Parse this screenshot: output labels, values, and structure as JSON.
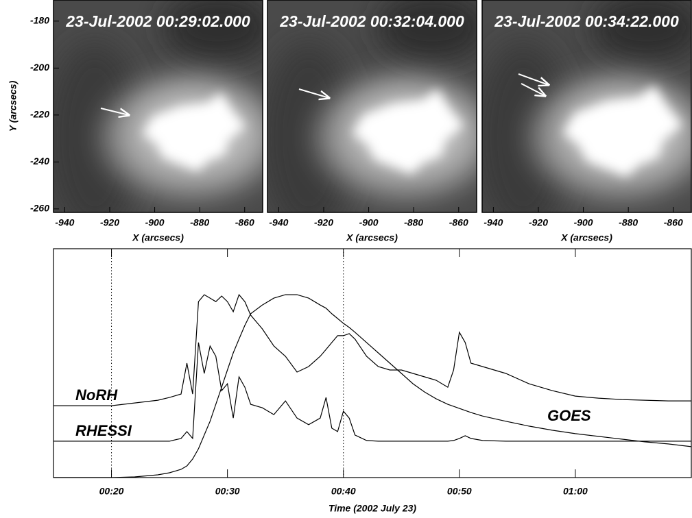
{
  "chart_data": [
    {
      "type": "image",
      "title": "23-Jul-2002 00:29:02.000",
      "xlabel": "X (arcsecs)",
      "ylabel": "Y (arcsecs)",
      "xlim": [
        -945,
        -852
      ],
      "ylim": [
        -261.5,
        -171
      ],
      "xticks": [
        -940,
        -920,
        -900,
        -880,
        -860
      ],
      "yticks": [
        -180,
        -200,
        -220,
        -240,
        -260
      ]
    },
    {
      "type": "image",
      "title": "23-Jul-2002 00:32:04.000",
      "xlabel": "X (arcsecs)",
      "xlim": [
        -945,
        -852
      ],
      "ylim": [
        -261.5,
        -171
      ],
      "xticks": [
        -940,
        -920,
        -900,
        -880,
        -860
      ]
    },
    {
      "type": "image",
      "title": "23-Jul-2002 00:34:22.000",
      "xlabel": "X (arcsecs)",
      "xlim": [
        -945,
        -852
      ],
      "ylim": [
        -261.5,
        -171
      ],
      "xticks": [
        -940,
        -920,
        -900,
        -880,
        -860
      ]
    },
    {
      "type": "line",
      "xlabel": "Time (2002 July 23)",
      "xlim": [
        15,
        70
      ],
      "ylim": [
        0,
        100
      ],
      "xticks": [
        {
          "value": 20,
          "label": "00:20"
        },
        {
          "value": 30,
          "label": "00:30"
        },
        {
          "value": 40,
          "label": "00:40"
        },
        {
          "value": 50,
          "label": "00:50"
        },
        {
          "value": 60,
          "label": "01:00"
        }
      ],
      "vlines": [
        20,
        40
      ],
      "x": [
        15,
        20,
        22,
        24,
        25,
        26,
        26.5,
        27,
        27.5,
        28,
        28.5,
        29,
        29.5,
        30,
        30.5,
        31,
        31.5,
        32,
        33,
        34,
        35,
        36,
        37,
        38,
        38.5,
        39,
        39.5,
        40,
        40.5,
        41,
        42,
        43,
        44,
        45,
        46,
        47,
        48,
        49,
        49.5,
        50,
        50.5,
        51,
        52,
        54,
        56,
        58,
        60,
        62,
        64,
        66,
        68,
        70
      ],
      "series": [
        {
          "name": "NoRH",
          "color": "#000000",
          "values": [
            31.4,
            31.4,
            32.6,
            33.8,
            35.0,
            36.5,
            50.0,
            36.5,
            76.9,
            79.9,
            78.4,
            76.9,
            79.3,
            76.9,
            72.5,
            79.9,
            76.9,
            71.0,
            65.0,
            57.5,
            53.0,
            46.1,
            48.5,
            53.0,
            56.0,
            59.0,
            62.0,
            62.0,
            62.9,
            60.5,
            53.0,
            48.5,
            47.0,
            47.0,
            45.5,
            44.0,
            42.5,
            39.5,
            47.0,
            63.5,
            59.0,
            50.0,
            48.5,
            45.5,
            41.0,
            38.0,
            35.6,
            34.7,
            34.1,
            33.8,
            33.5,
            33.5
          ]
        },
        {
          "name": "RHESSI",
          "color": "#000000",
          "values": [
            15.9,
            15.9,
            15.9,
            15.9,
            15.9,
            17.1,
            20.1,
            17.1,
            59.0,
            45.5,
            57.5,
            53.0,
            38.0,
            41.0,
            26.0,
            44.0,
            39.5,
            32.0,
            30.5,
            27.5,
            33.5,
            26.0,
            23.1,
            26.0,
            35.0,
            21.6,
            20.1,
            29.0,
            26.0,
            18.6,
            16.2,
            15.9,
            15.9,
            15.9,
            15.9,
            15.9,
            15.9,
            15.9,
            16.2,
            17.1,
            18.3,
            17.1,
            16.2,
            15.9,
            15.9,
            15.9,
            15.9,
            15.9,
            15.9,
            15.9,
            15.9,
            15.9
          ]
        },
        {
          "name": "GOES",
          "color": "#000000",
          "values": [
            0,
            0,
            0.3,
            1.2,
            2.1,
            3.6,
            5.1,
            8.1,
            12.6,
            18.6,
            24.6,
            32.0,
            39.5,
            47.0,
            54.5,
            60.5,
            66.5,
            71.6,
            75.4,
            78.4,
            79.9,
            79.9,
            78.4,
            75.4,
            74.0,
            71.6,
            69.5,
            67.4,
            65.6,
            63.5,
            59.0,
            54.5,
            50.0,
            45.5,
            41.0,
            37.4,
            34.4,
            32.0,
            31.1,
            30.2,
            29.3,
            28.4,
            26.9,
            24.6,
            22.5,
            20.7,
            19.2,
            18.0,
            16.8,
            15.6,
            14.7,
            13.5
          ]
        }
      ]
    }
  ]
}
